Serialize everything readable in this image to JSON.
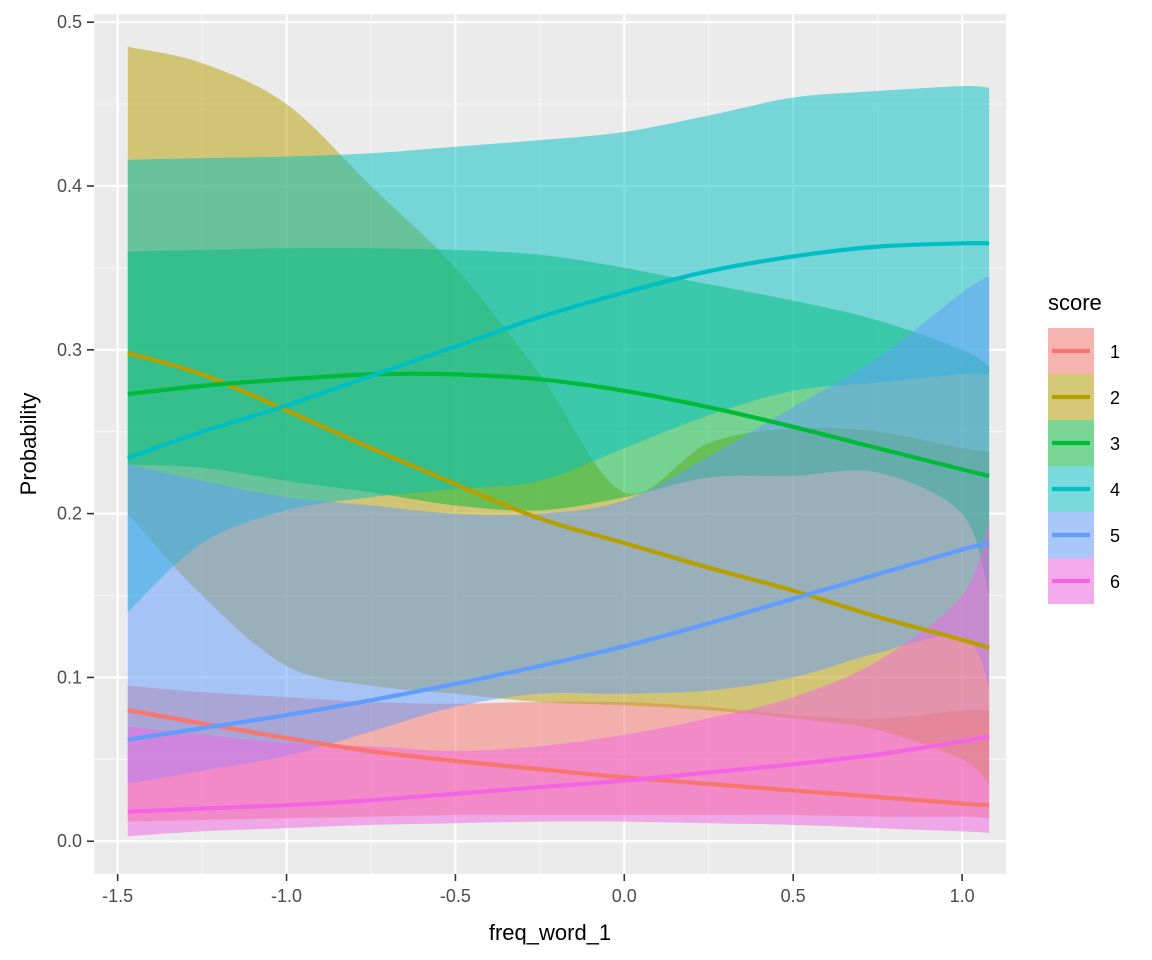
{
  "chart_data": {
    "type": "line",
    "title": "",
    "xlabel": "freq_word_1",
    "ylabel": "Probability",
    "xlim": [
      -1.57,
      1.13
    ],
    "ylim": [
      -0.02,
      0.505
    ],
    "x_ticks": [
      -1.5,
      -1.0,
      -0.5,
      0.0,
      0.5,
      1.0
    ],
    "x_tick_labels": [
      "-1.5",
      "-1.0",
      "-0.5",
      "0.0",
      "0.5",
      "1.0"
    ],
    "y_ticks": [
      0.0,
      0.1,
      0.2,
      0.3,
      0.4,
      0.5
    ],
    "y_tick_labels": [
      "0.0",
      "0.1",
      "0.2",
      "0.3",
      "0.4",
      "0.5"
    ],
    "grid": true,
    "legend": {
      "title": "score",
      "position": "right"
    },
    "x": [
      -1.47,
      -1.25,
      -1.0,
      -0.75,
      -0.5,
      -0.25,
      0.0,
      0.25,
      0.5,
      0.75,
      1.0,
      1.08
    ],
    "series": [
      {
        "name": "1",
        "color": "#F8766D",
        "values": [
          0.08,
          0.072,
          0.063,
          0.055,
          0.049,
          0.044,
          0.039,
          0.035,
          0.031,
          0.027,
          0.023,
          0.022
        ],
        "lower": [
          0.012,
          0.013,
          0.014,
          0.015,
          0.016,
          0.016,
          0.016,
          0.016,
          0.016,
          0.015,
          0.015,
          0.014
        ],
        "upper": [
          0.095,
          0.091,
          0.088,
          0.085,
          0.084,
          0.085,
          0.085,
          0.082,
          0.077,
          0.075,
          0.08,
          0.08
        ]
      },
      {
        "name": "2",
        "color": "#B79F00",
        "values": [
          0.298,
          0.285,
          0.263,
          0.24,
          0.218,
          0.197,
          0.182,
          0.167,
          0.153,
          0.137,
          0.123,
          0.118
        ],
        "lower": [
          0.2,
          0.15,
          0.107,
          0.095,
          0.09,
          0.085,
          0.083,
          0.08,
          0.075,
          0.068,
          0.05,
          0.035
        ],
        "upper": [
          0.485,
          0.475,
          0.45,
          0.4,
          0.35,
          0.285,
          0.213,
          0.243,
          0.252,
          0.25,
          0.24,
          0.238
        ]
      },
      {
        "name": "3",
        "color": "#00BA38",
        "values": [
          0.273,
          0.278,
          0.282,
          0.285,
          0.285,
          0.282,
          0.275,
          0.265,
          0.253,
          0.24,
          0.227,
          0.223
        ],
        "lower": [
          0.23,
          0.228,
          0.22,
          0.213,
          0.205,
          0.202,
          0.21,
          0.222,
          0.223,
          0.225,
          0.2,
          0.15
        ],
        "upper": [
          0.36,
          0.361,
          0.362,
          0.362,
          0.361,
          0.358,
          0.35,
          0.34,
          0.33,
          0.318,
          0.3,
          0.29
        ]
      },
      {
        "name": "4",
        "color": "#00BFC4",
        "values": [
          0.234,
          0.25,
          0.266,
          0.284,
          0.302,
          0.32,
          0.335,
          0.348,
          0.357,
          0.363,
          0.365,
          0.365
        ],
        "lower": [
          0.14,
          0.182,
          0.202,
          0.21,
          0.215,
          0.22,
          0.24,
          0.26,
          0.275,
          0.28,
          0.285,
          0.285
        ],
        "upper": [
          0.416,
          0.417,
          0.418,
          0.42,
          0.424,
          0.428,
          0.433,
          0.443,
          0.454,
          0.458,
          0.461,
          0.46
        ]
      },
      {
        "name": "5",
        "color": "#619CFF",
        "values": [
          0.062,
          0.069,
          0.077,
          0.086,
          0.096,
          0.107,
          0.119,
          0.133,
          0.148,
          0.163,
          0.178,
          0.182
        ],
        "lower": [
          0.035,
          0.043,
          0.052,
          0.067,
          0.082,
          0.09,
          0.09,
          0.092,
          0.1,
          0.115,
          0.125,
          0.095
        ],
        "upper": [
          0.23,
          0.22,
          0.21,
          0.205,
          0.2,
          0.2,
          0.208,
          0.235,
          0.265,
          0.295,
          0.335,
          0.345
        ]
      },
      {
        "name": "6",
        "color": "#F564E3",
        "values": [
          0.018,
          0.02,
          0.022,
          0.025,
          0.029,
          0.033,
          0.037,
          0.042,
          0.047,
          0.053,
          0.061,
          0.064
        ],
        "lower": [
          0.003,
          0.006,
          0.008,
          0.01,
          0.011,
          0.012,
          0.012,
          0.011,
          0.01,
          0.008,
          0.006,
          0.005
        ],
        "upper": [
          0.07,
          0.065,
          0.06,
          0.058,
          0.055,
          0.058,
          0.065,
          0.075,
          0.088,
          0.11,
          0.15,
          0.195
        ]
      }
    ]
  }
}
